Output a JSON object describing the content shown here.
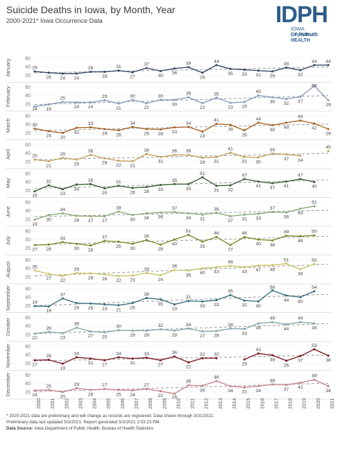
{
  "header": {
    "title": "Suicide Deaths in Iowa, by Month, Year",
    "subtitle": "2000-2021* Iowa Occurrence Data"
  },
  "logo": {
    "mark": "IDPH",
    "line1": "IOWA Department",
    "line2": "OF PUBLIC HEALTH"
  },
  "footnotes": {
    "line1": "* 2020-2021 data are preliminary and will change as records are registered. Data shown through 3/31/2021.",
    "line2": "Preliminary data last updated 5/3/2021. Report generated 5/3/2021 2:03:23 PM.",
    "source_label": "Data Source:",
    "source_text": "Iowa Department of Public Health, Bureau of Health Statistics"
  },
  "chart_data": {
    "type": "line",
    "layout": "small-multiples",
    "years": [
      "2000",
      "2001",
      "2002",
      "2003",
      "2004",
      "2005",
      "2006",
      "2007",
      "2008",
      "2009",
      "2010",
      "2011",
      "2012",
      "2013",
      "2014",
      "2015",
      "2016",
      "2017",
      "2018",
      "2019",
      "2020",
      "2021"
    ],
    "y_ticks": [
      20,
      40,
      60
    ],
    "ylim": [
      10,
      65
    ],
    "trend_line_style": "dashed grey",
    "panels": [
      {
        "month": "January",
        "color": "#3a4a68",
        "values": [
          29,
          26,
          24,
          24,
          28,
          28,
          31,
          27,
          37,
          30,
          36,
          39,
          26,
          44,
          35,
          33,
          31,
          29,
          38,
          32,
          44,
          44
        ],
        "labels": [
          "29",
          "26",
          "24",
          "24",
          "28",
          "28",
          "31",
          "27",
          "37",
          "30",
          "36",
          "39",
          "26",
          "44",
          "35",
          "33",
          "31",
          "29",
          "38",
          "32",
          "44",
          "44"
        ]
      },
      {
        "month": "February",
        "color": "#8a9cbc",
        "values": [
          14,
          19,
          25,
          24,
          24,
          29,
          21,
          30,
          22,
          30,
          30,
          36,
          22,
          35,
          23,
          25,
          40,
          36,
          32,
          37,
          63,
          29
        ],
        "labels": [
          "14",
          "19",
          "25",
          "24",
          "24",
          "29",
          "21",
          "30",
          "22",
          "30",
          "30",
          "36",
          "22",
          "35",
          "23",
          "25",
          "40",
          "36",
          "32",
          "37",
          "63",
          "29"
        ]
      },
      {
        "month": "March",
        "color": "#a8642a",
        "values": [
          30,
          24,
          20,
          32,
          33,
          29,
          26,
          34,
          29,
          28,
          33,
          34,
          23,
          41,
          39,
          26,
          44,
          38,
          44,
          49,
          42,
          29
        ],
        "labels": [
          "30",
          "24",
          "20",
          "32",
          "33",
          "29",
          "26",
          "34",
          "29",
          "28",
          "33",
          "34",
          "23",
          "41",
          "39",
          "26",
          "44",
          "38",
          "44",
          "49",
          "42",
          "29"
        ]
      },
      {
        "month": "April",
        "color": "#c3a05e",
        "values": [
          25,
          21,
          29,
          25,
          36,
          28,
          22,
          21,
          38,
          31,
          36,
          36,
          29,
          31,
          41,
          31,
          30,
          39,
          37,
          34,
          null,
          45
        ],
        "labels": [
          "25",
          "21",
          "29",
          "25",
          "36",
          "28",
          "22",
          "21",
          "38",
          "31",
          "36",
          "36",
          "29",
          "31",
          "41",
          "31",
          "30",
          "39",
          "37",
          "34",
          "",
          "45"
        ]
      },
      {
        "month": "May",
        "color": "#3f5e3a",
        "values": [
          18,
          32,
          23,
          34,
          35,
          25,
          31,
          26,
          28,
          33,
          35,
          35,
          51,
          31,
          32,
          47,
          41,
          37,
          41,
          47,
          40,
          null
        ],
        "labels": [
          "18",
          "32",
          "23",
          "34",
          "35",
          "25",
          "31",
          "26",
          "28",
          "33",
          "35",
          "35",
          "51",
          "31",
          "32",
          "47",
          "41",
          "37",
          "41",
          "47",
          "40",
          ""
        ]
      },
      {
        "month": "June",
        "color": "#8aaa77",
        "values": [
          19,
          30,
          34,
          28,
          27,
          27,
          38,
          30,
          34,
          36,
          37,
          34,
          31,
          35,
          27,
          31,
          33,
          37,
          36,
          45,
          51,
          null
        ],
        "labels": [
          "19",
          "30",
          "34",
          "28",
          "27",
          "27",
          "38",
          "30",
          "34",
          "36",
          "37",
          "34",
          "31",
          "35",
          "27",
          "31",
          "33",
          "37",
          "36",
          "45",
          "51",
          ""
        ]
      },
      {
        "month": "July",
        "color": "#7e8a2c",
        "values": [
          27,
          28,
          34,
          30,
          26,
          37,
          35,
          30,
          39,
          28,
          40,
          51,
          35,
          46,
          27,
          46,
          40,
          38,
          49,
          48,
          50,
          null
        ],
        "labels": [
          "27",
          "28",
          "34",
          "30",
          "26",
          "37",
          "35",
          "30",
          "39",
          "28",
          "40",
          "51",
          "35",
          "46",
          "27",
          "46",
          "40",
          "38",
          "49",
          "48",
          "50",
          ""
        ]
      },
      {
        "month": "August",
        "color": "#c8c468",
        "values": [
          35,
          27,
          22,
          29,
          28,
          26,
          22,
          23,
          29,
          24,
          36,
          35,
          40,
          43,
          46,
          43,
          47,
          48,
          51,
          38,
          50,
          null
        ],
        "labels": [
          "35",
          "27",
          "22",
          "29",
          "28",
          "26",
          "22",
          "23",
          "29",
          "24",
          "36",
          "35",
          "40",
          "43",
          "46",
          "43",
          "47",
          "48",
          "51",
          "38",
          "50",
          ""
        ]
      },
      {
        "month": "September",
        "color": "#3c6f7c",
        "values": [
          19,
          18,
          37,
          26,
          25,
          23,
          21,
          26,
          38,
          35,
          23,
          31,
          30,
          33,
          45,
          32,
          30,
          56,
          44,
          40,
          54,
          null
        ],
        "labels": [
          "19",
          "18",
          "37",
          "26",
          "25",
          "23",
          "21",
          "26",
          "38",
          "35",
          "23",
          "31",
          "30",
          "33",
          "45",
          "32",
          "30",
          "56",
          "44",
          "40",
          "54",
          ""
        ]
      },
      {
        "month": "October",
        "color": "#86a6ae",
        "values": [
          22,
          26,
          23,
          36,
          27,
          25,
          30,
          29,
          29,
          32,
          29,
          34,
          27,
          28,
          34,
          33,
          46,
          49,
          44,
          49,
          46,
          null
        ],
        "labels": [
          "22",
          "26",
          "23",
          "36",
          "27",
          "25",
          "30",
          "29",
          "29",
          "32",
          "29",
          "34",
          "27",
          "28",
          "34",
          "33",
          "46",
          "49",
          "44",
          "49",
          "46",
          ""
        ]
      },
      {
        "month": "November",
        "color": "#7a1f28",
        "values": [
          27,
          28,
          19,
          34,
          31,
          27,
          34,
          31,
          33,
          27,
          36,
          22,
          32,
          32,
          null,
          29,
          43,
          39,
          26,
          37,
          53,
          38
        ],
        "labels": [
          "27",
          "28",
          "19",
          "34",
          "31",
          "27",
          "34",
          "31",
          "33",
          "27",
          "36",
          "22",
          "32",
          "32",
          "",
          "29",
          "43",
          "39",
          "26",
          "37",
          "53",
          "38"
        ]
      },
      {
        "month": "December",
        "color": "#c4868c",
        "values": [
          24,
          25,
          20,
          29,
          25,
          27,
          25,
          24,
          27,
          22,
          16,
          36,
          35,
          46,
          34,
          31,
          34,
          38,
          37,
          42,
          49,
          34
        ],
        "labels": [
          "24",
          "25",
          "20",
          "29",
          "25",
          "27",
          "25",
          "24",
          "27",
          "22",
          "16",
          "36",
          "35",
          "46",
          "34",
          "31",
          "34",
          "38",
          "37",
          "42",
          "49",
          "34"
        ]
      }
    ]
  }
}
